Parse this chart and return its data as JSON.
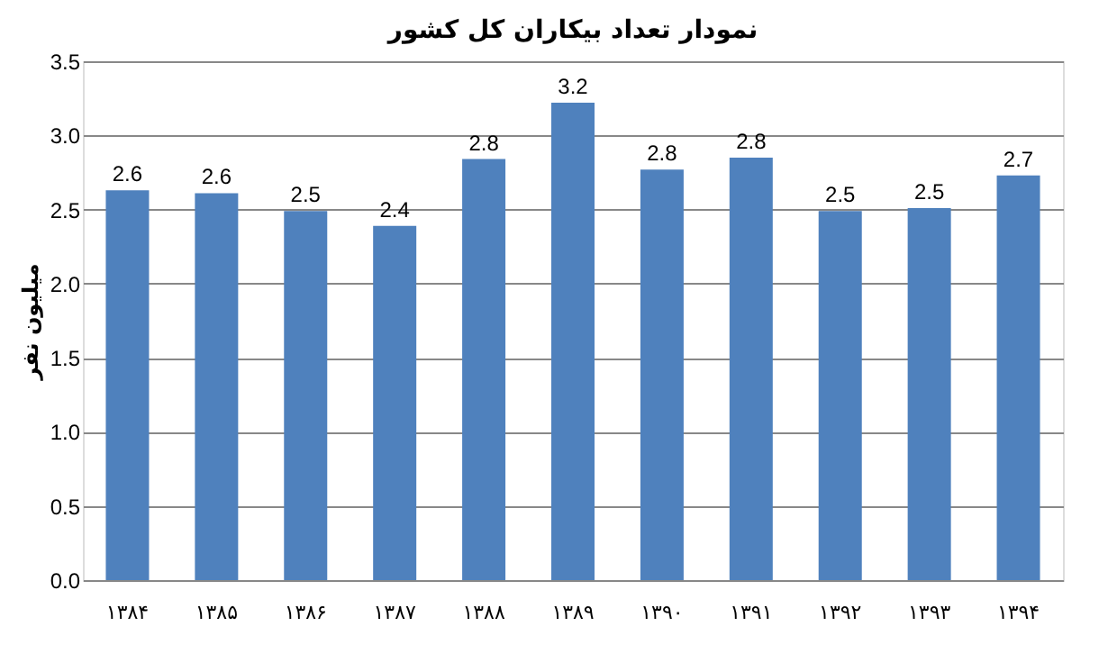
{
  "chart_data": {
    "type": "bar",
    "title": "نمودار تعداد بیکاران کل کشور",
    "ylabel": "میلیون نفر",
    "categories": [
      "۱۳۸۴",
      "۱۳۸۵",
      "۱۳۸۶",
      "۱۳۸۷",
      "۱۳۸۸",
      "۱۳۸۹",
      "۱۳۹۰",
      "۱۳۹۱",
      "۱۳۹۲",
      "۱۳۹۳",
      "۱۳۹۴"
    ],
    "values": [
      2.63,
      2.61,
      2.49,
      2.39,
      2.84,
      3.22,
      2.77,
      2.85,
      2.49,
      2.51,
      2.73
    ],
    "value_labels": [
      "2.6",
      "2.6",
      "2.5",
      "2.4",
      "2.8",
      "3.2",
      "2.8",
      "2.8",
      "2.5",
      "2.5",
      "2.7"
    ],
    "color": "#4f81bd",
    "ylim": [
      0,
      3.5
    ],
    "yticks": [
      {
        "value": 0,
        "label": "0.0"
      },
      0.5,
      {
        "value": 1,
        "label": "1.0"
      },
      1.5,
      {
        "value": 2,
        "label": "2.0"
      },
      2.5,
      {
        "value": 3,
        "label": "3.0"
      },
      3.5
    ],
    "grid": "y"
  }
}
